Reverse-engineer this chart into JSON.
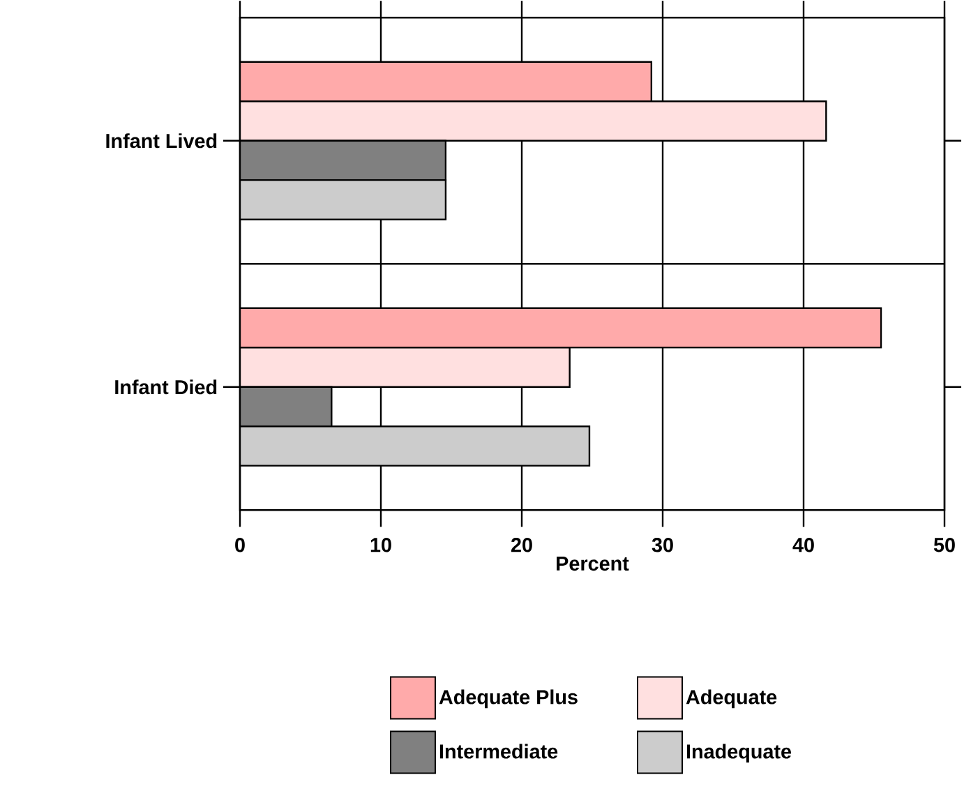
{
  "chart_data": {
    "type": "bar",
    "orientation": "horizontal",
    "categories": [
      "Infant Lived",
      "Infant Died"
    ],
    "xlabel": "Percent",
    "xlim": [
      0,
      50
    ],
    "xticks": [
      0,
      10,
      20,
      30,
      40,
      50
    ],
    "grid": true,
    "legend": "bottom",
    "series": [
      {
        "name": "Adequate Plus",
        "color": "#ffaaaa",
        "values": [
          29.2,
          45.5
        ]
      },
      {
        "name": "Adequate",
        "color": "#ffe0e0",
        "values": [
          41.6,
          23.4
        ]
      },
      {
        "name": "Intermediate",
        "color": "#808080",
        "values": [
          14.6,
          6.5
        ]
      },
      {
        "name": "Inadequate",
        "color": "#cccccc",
        "values": [
          14.6,
          24.8
        ]
      }
    ]
  }
}
